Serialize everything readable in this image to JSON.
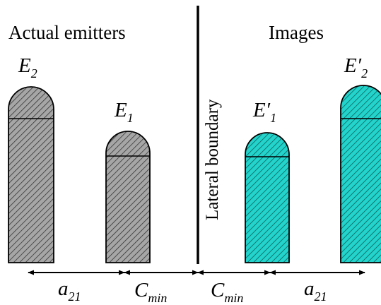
{
  "headings": {
    "left": "Actual emitters",
    "right": "Images"
  },
  "boundary": {
    "label": "Lateral boundary"
  },
  "emitters": {
    "e2": {
      "letter": "E",
      "prime": "",
      "sub": "2"
    },
    "e1": {
      "letter": "E",
      "prime": "",
      "sub": "1"
    },
    "e1_image": {
      "letter": "E",
      "prime": "′",
      "sub": "1"
    },
    "e2_image": {
      "letter": "E",
      "prime": "′",
      "sub": "2"
    }
  },
  "dimensions": {
    "a21_left": {
      "letter": "a",
      "sub": "21"
    },
    "cmin_left": {
      "letter": "C",
      "sub": "min"
    },
    "cmin_right": {
      "letter": "C",
      "sub": "min"
    },
    "a21_right": {
      "letter": "a",
      "sub": "21"
    }
  },
  "colors": {
    "actual_fill": "#a6a6a6",
    "image_fill": "#22d4cc",
    "outline": "#000000"
  }
}
